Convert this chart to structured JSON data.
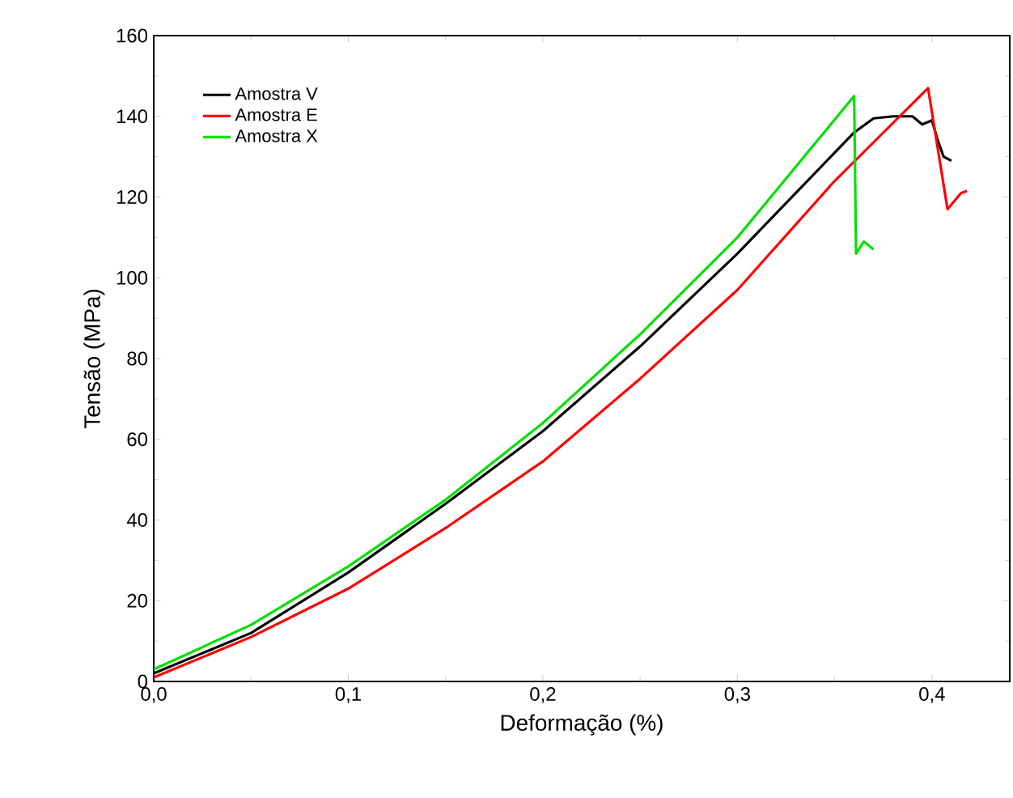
{
  "chart_data": {
    "type": "line",
    "xlabel": "Deformação (%)",
    "ylabel": "Tensão (MPa)",
    "xlim": [
      0,
      0.44
    ],
    "ylim": [
      0,
      160
    ],
    "xticks": [
      {
        "value": 0,
        "label": "0,0"
      },
      {
        "value": 0.1,
        "label": "0,1"
      },
      {
        "value": 0.2,
        "label": "0,2"
      },
      {
        "value": 0.3,
        "label": "0,3"
      },
      {
        "value": 0.4,
        "label": "0,4"
      }
    ],
    "yticks": [
      0,
      20,
      40,
      60,
      80,
      100,
      120,
      140,
      160
    ],
    "grid": false,
    "legend": "top left",
    "marker": "none",
    "line_style": "solid",
    "series": [
      {
        "name": "Amostra V",
        "color": "#000000",
        "x": [
          0,
          0.05,
          0.1,
          0.15,
          0.2,
          0.25,
          0.3,
          0.35,
          0.36,
          0.37,
          0.38,
          0.39,
          0.395,
          0.4,
          0.403,
          0.406,
          0.41
        ],
        "values": [
          2,
          12,
          27,
          44,
          62,
          83,
          106,
          131,
          136,
          139.5,
          140,
          140,
          138,
          139,
          134,
          130,
          129
        ]
      },
      {
        "name": "Amostra E",
        "color": "#ff0000",
        "x": [
          0,
          0.05,
          0.1,
          0.15,
          0.2,
          0.25,
          0.3,
          0.35,
          0.398,
          0.408,
          0.415,
          0.418
        ],
        "values": [
          1,
          11,
          23,
          38,
          54.5,
          75,
          97,
          124,
          147,
          117,
          121,
          121.5
        ]
      },
      {
        "name": "Amostra X",
        "color": "#00e000",
        "x": [
          0,
          0.05,
          0.1,
          0.15,
          0.2,
          0.25,
          0.3,
          0.36,
          0.361,
          0.365,
          0.37
        ],
        "values": [
          3,
          14,
          28.5,
          45,
          64,
          86,
          110,
          145,
          106,
          109,
          107
        ]
      }
    ]
  }
}
